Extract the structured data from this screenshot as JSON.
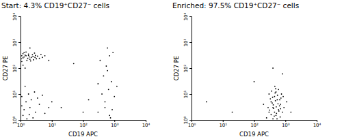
{
  "chart_data": [
    {
      "type": "scatter",
      "title": "Start: 4.3% CD19⁺CD27⁻ cells",
      "x_label": "CD19 APC",
      "y_label": "CD27 PE",
      "log": true,
      "color": "#000000",
      "marker": "dot",
      "xlim": [
        1,
        10000
      ],
      "ylim": [
        1,
        10000
      ],
      "xticks": [
        {
          "value": 1,
          "label": "10⁰"
        },
        {
          "value": 10,
          "label": "10¹"
        },
        {
          "value": 100,
          "label": "10²"
        },
        {
          "value": 1000,
          "label": "10³"
        },
        {
          "value": 10000,
          "label": "10⁴"
        }
      ],
      "yticks": [
        {
          "value": 1,
          "label": "10⁰"
        },
        {
          "value": 10,
          "label": "10¹"
        },
        {
          "value": 100,
          "label": "10²"
        },
        {
          "value": 1000,
          "label": "10³"
        },
        {
          "value": 10000,
          "label": "10⁴"
        }
      ],
      "x": [
        1.2,
        1.5,
        2,
        1.8,
        2.5,
        3,
        1.1,
        1.3,
        2.2,
        4,
        1.6,
        2.8,
        1.4,
        3.5,
        1.9,
        1.1,
        2.4,
        1.7,
        5,
        1.2,
        2.1,
        3.2,
        1.5,
        6,
        1.3,
        2.6,
        1.8,
        1.05,
        4.5,
        2.9,
        1.4,
        2,
        8,
        1.2,
        1.2,
        2,
        1.5,
        3,
        1.1,
        2.5,
        4,
        1.8,
        1.3,
        6,
        2.2,
        1.6,
        3.5,
        1.1,
        8,
        2.8,
        1.4,
        5,
        1.9,
        10,
        300,
        500,
        700,
        400,
        800,
        600,
        350,
        900,
        500,
        1000,
        450,
        650,
        700,
        550,
        300,
        850,
        150,
        1200,
        600,
        750,
        20,
        50,
        100
      ],
      "values": [
        250,
        300,
        220,
        350,
        280,
        310,
        180,
        400,
        260,
        240,
        200,
        380,
        320,
        290,
        270,
        300,
        330,
        240,
        260,
        360,
        190,
        230,
        420,
        300,
        270,
        210,
        310,
        230,
        340,
        260,
        100,
        600,
        200,
        130,
        1.5,
        3,
        5,
        2,
        8,
        1.2,
        4,
        10,
        2.5,
        1.8,
        6,
        1.1,
        7,
        3.5,
        3,
        12,
        20,
        9,
        1.6,
        5,
        2,
        5,
        1.5,
        10,
        30,
        80,
        200,
        400,
        3,
        8,
        50,
        15,
        300,
        120,
        25,
        2.5,
        6,
        20,
        600,
        1.2,
        3,
        150,
        2
      ]
    },
    {
      "type": "scatter",
      "title": "Enriched: 97.5% CD19⁺CD27⁻ cells",
      "x_label": "CD19 APC",
      "y_label": "CD27 PE",
      "log": true,
      "color": "#000000",
      "marker": "dot",
      "xlim": [
        1,
        10000
      ],
      "ylim": [
        1,
        10000
      ],
      "xticks": [
        {
          "value": 1,
          "label": "10⁰"
        },
        {
          "value": 10,
          "label": "10¹"
        },
        {
          "value": 100,
          "label": "10²"
        },
        {
          "value": 1000,
          "label": "10³"
        },
        {
          "value": 10000,
          "label": "10⁴"
        }
      ],
      "yticks": [
        {
          "value": 1,
          "label": "10⁰"
        },
        {
          "value": 10,
          "label": "10¹"
        },
        {
          "value": 100,
          "label": "10²"
        },
        {
          "value": 1000,
          "label": "10³"
        },
        {
          "value": 10000,
          "label": "10⁴"
        }
      ],
      "x": [
        300,
        400,
        500,
        350,
        600,
        450,
        700,
        250,
        550,
        800,
        400,
        300,
        650,
        500,
        450,
        380,
        720,
        280,
        520,
        600,
        900,
        350,
        480,
        420,
        560,
        330,
        680,
        750,
        460,
        200,
        1100,
        620,
        390,
        510,
        440,
        580,
        310,
        470,
        540,
        660,
        850,
        360,
        410,
        700,
        490,
        100,
        20,
        800,
        3,
        400,
        1500
      ],
      "values": [
        2,
        3,
        1.5,
        5,
        2.5,
        8,
        4,
        1.2,
        6,
        2,
        1.1,
        10,
        3.5,
        12,
        2,
        4.5,
        7,
        3,
        1.8,
        15,
        3,
        1.6,
        5.5,
        2.8,
        9,
        6.5,
        1.3,
        10,
        20,
        4,
        5,
        2.2,
        7.5,
        3.2,
        1.4,
        4.2,
        2.4,
        11,
        1.1,
        6,
        8,
        13,
        3.8,
        2.7,
        16,
        30,
        2,
        60,
        5,
        100,
        2
      ]
    }
  ]
}
